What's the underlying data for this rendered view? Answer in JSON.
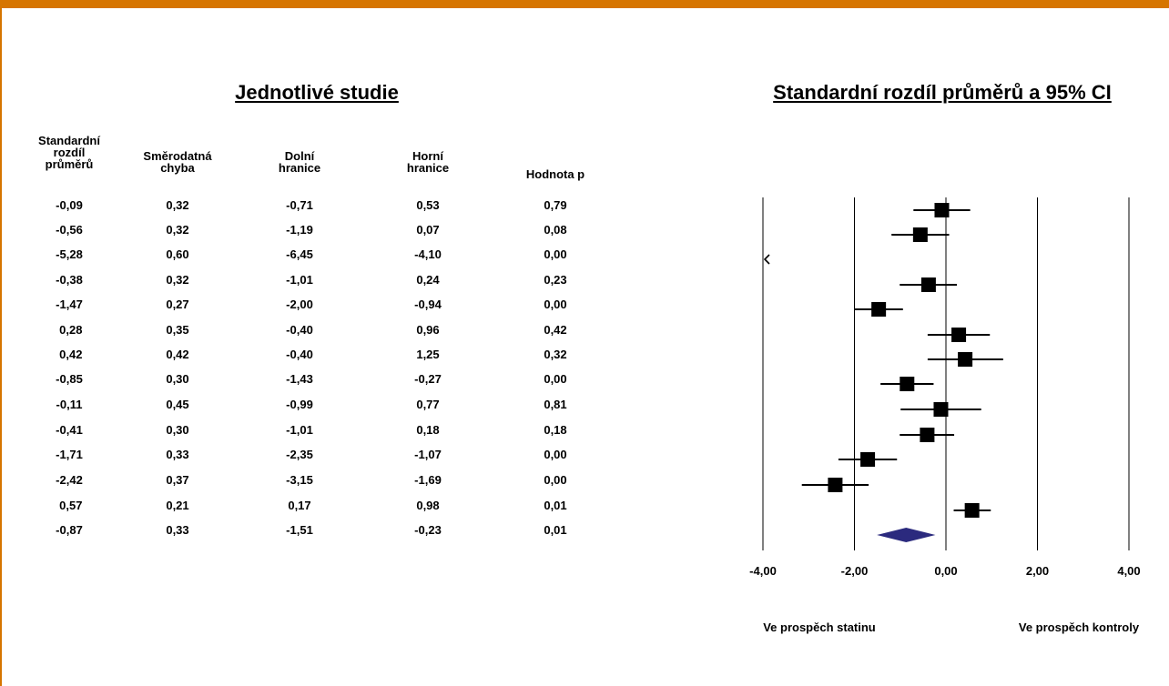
{
  "headings": {
    "left": "Jednotlivé studie",
    "right": "Standardní rozdíl průměrů a 95% CI"
  },
  "columns": [
    "Standardní\nrozdíl\nprůměrů",
    "Směrodatná\nchyba",
    "Dolní\nhranice",
    "Horní\nhranice",
    "Hodnota p"
  ],
  "rows": [
    [
      "-0,09",
      "0,32",
      "-0,71",
      "0,53",
      "0,79"
    ],
    [
      "-0,56",
      "0,32",
      "-1,19",
      "0,07",
      "0,08"
    ],
    [
      "-5,28",
      "0,60",
      "-6,45",
      "-4,10",
      "0,00"
    ],
    [
      "-0,38",
      "0,32",
      "-1,01",
      "0,24",
      "0,23"
    ],
    [
      "-1,47",
      "0,27",
      "-2,00",
      "-0,94",
      "0,00"
    ],
    [
      " 0,28",
      "0,35",
      "-0,40",
      "0,96",
      "0,42"
    ],
    [
      " 0,42",
      "0,42",
      "-0,40",
      "1,25",
      "0,32"
    ],
    [
      "-0,85",
      "0,30",
      "-1,43",
      "-0,27",
      "0,00"
    ],
    [
      "-0,11",
      "0,45",
      "-0,99",
      "0,77",
      "0,81"
    ],
    [
      "-0,41",
      "0,30",
      "-1,01",
      "0,18",
      "0,18"
    ],
    [
      "-1,71",
      "0,33",
      "-2,35",
      "-1,07",
      "0,00"
    ],
    [
      "-2,42",
      "0,37",
      "-3,15",
      "-1,69",
      "0,00"
    ],
    [
      " 0,57",
      "0,21",
      "0,17",
      "0,98",
      "0,01"
    ],
    [
      "-0,87",
      "0,33",
      "-1,51",
      "-0,23",
      "0,01"
    ]
  ],
  "colors": {
    "accent_bar": "#d67500",
    "summary": "#2b2a7e",
    "marker": "#000000"
  },
  "chart_data": {
    "type": "scatter",
    "title": "Standardní rozdíl průměrů a 95% CI",
    "xlim": [
      -4,
      4
    ],
    "x_ticks": [
      -4,
      -2,
      0,
      2,
      4
    ],
    "x_tick_labels": [
      "-4,00",
      "-2,00",
      "0,00",
      "2,00",
      "4,00"
    ],
    "studies": [
      {
        "est": -0.09,
        "lo": -0.71,
        "hi": 0.53
      },
      {
        "est": -0.56,
        "lo": -1.19,
        "hi": 0.07
      },
      {
        "est": -5.28,
        "lo": -6.45,
        "hi": -4.1
      },
      {
        "est": -0.38,
        "lo": -1.01,
        "hi": 0.24
      },
      {
        "est": -1.47,
        "lo": -2.0,
        "hi": -0.94
      },
      {
        "est": 0.28,
        "lo": -0.4,
        "hi": 0.96
      },
      {
        "est": 0.42,
        "lo": -0.4,
        "hi": 1.25
      },
      {
        "est": -0.85,
        "lo": -1.43,
        "hi": -0.27
      },
      {
        "est": -0.11,
        "lo": -0.99,
        "hi": 0.77
      },
      {
        "est": -0.41,
        "lo": -1.01,
        "hi": 0.18
      },
      {
        "est": -1.71,
        "lo": -2.35,
        "hi": -1.07
      },
      {
        "est": -2.42,
        "lo": -3.15,
        "hi": -1.69
      },
      {
        "est": 0.57,
        "lo": 0.17,
        "hi": 0.98
      }
    ],
    "summary": {
      "est": -0.87,
      "lo": -1.51,
      "hi": -0.23
    },
    "favors_left": "Ve prospěch statinu",
    "favors_right": "Ve prospěch kontroly"
  }
}
